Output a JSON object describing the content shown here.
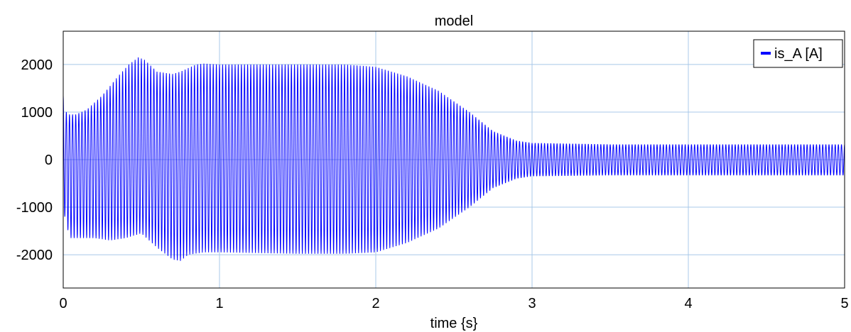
{
  "chart_data": {
    "type": "line",
    "title": "model",
    "xlabel": "time {s}",
    "ylabel": "",
    "xlim": [
      0,
      5
    ],
    "ylim": [
      -2700,
      2700
    ],
    "xticks": [
      0,
      1,
      2,
      3,
      4,
      5
    ],
    "xtick_labels": [
      "0",
      "1",
      "2",
      "3",
      "4",
      "5"
    ],
    "yticks": [
      2000,
      1000,
      0,
      -1000,
      -2000
    ],
    "ytick_labels": [
      "2000",
      "1000",
      "0",
      "-1000",
      "-2000"
    ],
    "grid": true,
    "legend_position": "top-right",
    "signal_frequency_hz": 50,
    "series": [
      {
        "name": "is_A [A]",
        "color": "#0000ff",
        "style": "oscillating",
        "envelope_upper": {
          "t": [
            0,
            0.01,
            0.03,
            0.08,
            0.15,
            0.25,
            0.35,
            0.42,
            0.48,
            0.52,
            0.6,
            0.7,
            0.75,
            0.85,
            0.9,
            1.0,
            1.2,
            1.5,
            1.8,
            2.0,
            2.2,
            2.4,
            2.6,
            2.75,
            2.9,
            3.0,
            3.5,
            4.0,
            4.5,
            5.0
          ],
          "v": [
            1350,
            1050,
            950,
            950,
            1050,
            1350,
            1750,
            2000,
            2150,
            2100,
            1850,
            1800,
            1850,
            2000,
            2020,
            2000,
            2000,
            2000,
            2000,
            1950,
            1750,
            1450,
            1000,
            600,
            400,
            350,
            320,
            320,
            320,
            320
          ]
        },
        "envelope_lower": {
          "t": [
            0,
            0.02,
            0.05,
            0.1,
            0.2,
            0.3,
            0.4,
            0.5,
            0.6,
            0.7,
            0.75,
            0.8,
            0.9,
            1.0,
            1.5,
            1.8,
            2.0,
            2.2,
            2.4,
            2.6,
            2.75,
            2.9,
            3.0,
            3.5,
            4.0,
            4.5,
            5.0
          ],
          "v": [
            -1000,
            -1400,
            -1650,
            -1650,
            -1650,
            -1700,
            -1650,
            -1550,
            -1850,
            -2100,
            -2130,
            -2000,
            -1950,
            -1950,
            -1980,
            -1980,
            -1950,
            -1750,
            -1450,
            -1000,
            -600,
            -400,
            -350,
            -330,
            -330,
            -330,
            -330
          ]
        }
      }
    ]
  }
}
